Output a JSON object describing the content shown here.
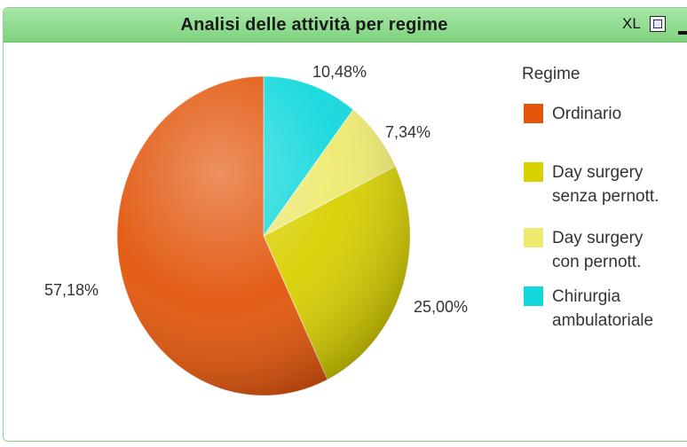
{
  "panel": {
    "title": "Analisi delle attività per regime",
    "xl_label": "XL"
  },
  "icons": {
    "export": "export-icon",
    "minimize": "minimize-icon"
  },
  "chart_data": {
    "type": "pie",
    "legend_title": "Regime",
    "legend_position": "right",
    "slices": [
      {
        "label": [
          "Ordinario"
        ],
        "value": 57.18,
        "value_label": "57,18%",
        "color": "#e2550a"
      },
      {
        "label": [
          "Day surgery",
          "senza pernott."
        ],
        "value": 25.0,
        "value_label": "25,00%",
        "color": "#d8d000"
      },
      {
        "label": [
          "Day surgery",
          "con pernott."
        ],
        "value": 7.34,
        "value_label": "7,34%",
        "color": "#eeea70"
      },
      {
        "label": [
          "Chirurgia",
          "ambulatoriale"
        ],
        "value": 10.48,
        "value_label": "10,48%",
        "color": "#12d8dc"
      }
    ]
  }
}
